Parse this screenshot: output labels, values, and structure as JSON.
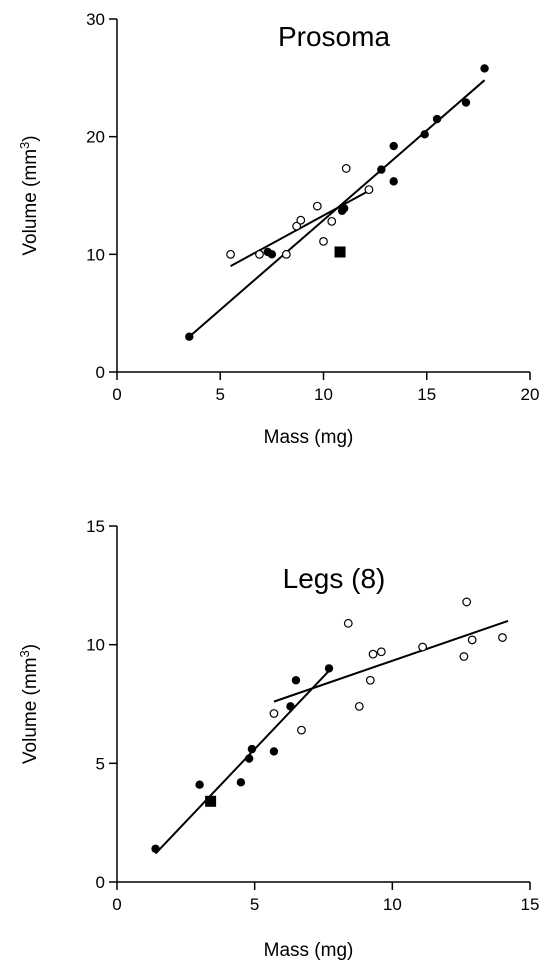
{
  "chart_data": [
    {
      "type": "scatter",
      "title": "Prosoma",
      "xlabel": "Mass (mg)",
      "ylabel": "Volume (mm",
      "ylabel_sup": "3",
      "ylabel_close": ")",
      "xlim": [
        0,
        20
      ],
      "ylim": [
        0,
        30
      ],
      "xticks": [
        0,
        5,
        10,
        15,
        20
      ],
      "yticks": [
        0,
        10,
        20,
        30
      ],
      "grid": false,
      "legend": "none",
      "series": [
        {
          "marker": "filled-circle",
          "points": [
            [
              3.5,
              3.0
            ],
            [
              7.3,
              10.2
            ],
            [
              7.5,
              10.0
            ],
            [
              10.9,
              13.7
            ],
            [
              11.0,
              13.9
            ],
            [
              12.8,
              17.2
            ],
            [
              13.4,
              19.2
            ],
            [
              13.4,
              16.2
            ],
            [
              14.9,
              20.2
            ],
            [
              15.5,
              21.5
            ],
            [
              16.9,
              22.9
            ],
            [
              17.8,
              25.8
            ]
          ],
          "fit": [
            [
              3.5,
              3.0
            ],
            [
              17.8,
              24.8
            ]
          ]
        },
        {
          "marker": "open-circle",
          "points": [
            [
              5.5,
              10.0
            ],
            [
              6.9,
              10.0
            ],
            [
              8.2,
              10.0
            ],
            [
              8.7,
              12.4
            ],
            [
              8.9,
              12.9
            ],
            [
              9.7,
              14.1
            ],
            [
              10.0,
              11.1
            ],
            [
              10.4,
              12.8
            ],
            [
              11.1,
              17.3
            ],
            [
              12.2,
              15.5
            ]
          ],
          "fit": [
            [
              5.5,
              9.0
            ],
            [
              12.3,
              15.5
            ]
          ]
        },
        {
          "marker": "filled-square",
          "points": [
            [
              10.8,
              10.2
            ]
          ]
        }
      ]
    },
    {
      "type": "scatter",
      "title": "Legs (8)",
      "xlabel": "Mass (mg)",
      "ylabel": "Volume (mm",
      "ylabel_sup": "3",
      "ylabel_close": ")",
      "xlim": [
        0,
        15
      ],
      "ylim": [
        0,
        15
      ],
      "xticks": [
        0,
        5,
        10,
        15
      ],
      "yticks": [
        0,
        5,
        10,
        15
      ],
      "grid": false,
      "legend": "none",
      "series": [
        {
          "marker": "filled-circle",
          "points": [
            [
              1.4,
              1.4
            ],
            [
              3.0,
              4.1
            ],
            [
              4.5,
              4.2
            ],
            [
              4.8,
              5.2
            ],
            [
              4.9,
              5.6
            ],
            [
              5.7,
              5.5
            ],
            [
              6.3,
              7.4
            ],
            [
              6.5,
              8.5
            ],
            [
              7.7,
              9.0
            ]
          ],
          "fit": [
            [
              1.4,
              1.2
            ],
            [
              7.7,
              8.9
            ]
          ]
        },
        {
          "marker": "open-circle",
          "points": [
            [
              5.7,
              7.1
            ],
            [
              6.7,
              6.4
            ],
            [
              8.4,
              10.9
            ],
            [
              8.8,
              7.4
            ],
            [
              9.2,
              8.5
            ],
            [
              9.3,
              9.6
            ],
            [
              9.6,
              9.7
            ],
            [
              11.1,
              9.9
            ],
            [
              12.6,
              9.5
            ],
            [
              12.7,
              11.8
            ],
            [
              12.9,
              10.2
            ],
            [
              14.0,
              10.3
            ]
          ],
          "fit": [
            [
              5.7,
              7.6
            ],
            [
              14.2,
              11.0
            ]
          ]
        },
        {
          "marker": "filled-square",
          "points": [
            [
              3.4,
              3.4
            ]
          ]
        }
      ]
    }
  ]
}
